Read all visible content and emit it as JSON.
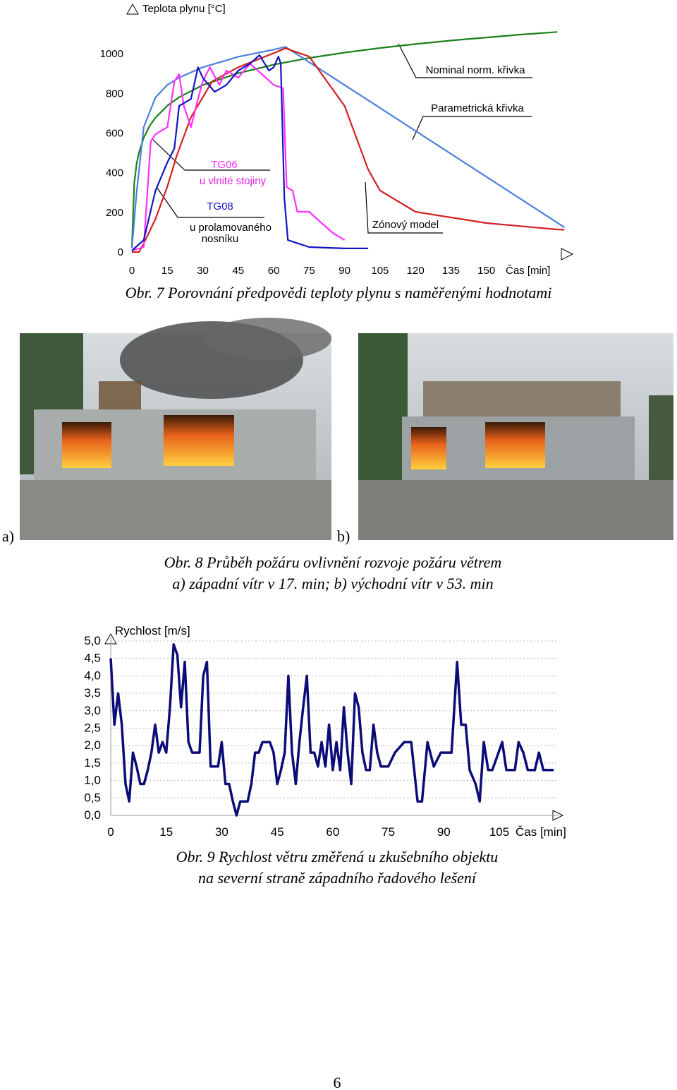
{
  "chart_data": [
    {
      "type": "line",
      "y_label": "Teplota plynu [°C]",
      "x_label": "Čas [min]",
      "xlim": [
        0,
        185
      ],
      "ylim": [
        0,
        1200
      ],
      "xticks": [
        0,
        15,
        30,
        45,
        60,
        75,
        90,
        105,
        120,
        135,
        150
      ],
      "yticks": [
        0,
        200,
        400,
        600,
        800,
        1000
      ],
      "grid": false,
      "series": [
        {
          "name": "Nominal norm. křivka",
          "color": "#1b7f1b",
          "x": [
            0,
            1,
            2,
            3,
            5,
            7.5,
            10,
            15,
            20,
            30,
            45,
            60,
            75,
            90,
            105,
            120,
            135,
            150,
            165,
            180
          ],
          "values": [
            20,
            349,
            444,
            502,
            576,
            636,
            678,
            738,
            781,
            842,
            902,
            945,
            979,
            1006,
            1029,
            1049,
            1067,
            1082,
            1097,
            1110
          ]
        },
        {
          "name": "Parametrická křivka",
          "color": "#4a80dc",
          "x": [
            0,
            2,
            5,
            10,
            15,
            20,
            30,
            45,
            60,
            65,
            183
          ],
          "values": [
            20,
            300,
            630,
            780,
            843,
            880,
            932,
            985,
            1021,
            1035,
            125
          ]
        },
        {
          "name": "Zónový model",
          "color": "#d42020",
          "x": [
            0,
            3,
            5,
            10,
            15,
            19,
            25,
            34,
            45,
            60,
            65,
            75,
            90,
            100,
            105,
            120,
            150,
            180,
            183
          ],
          "values": [
            0,
            0,
            43,
            167,
            330,
            487,
            680,
            861,
            932,
            1003,
            1028,
            986,
            737,
            416,
            310,
            203,
            146,
            114,
            112
          ]
        },
        {
          "name": "TG06",
          "color": "#ff30ff",
          "x": [
            0,
            5,
            8,
            10,
            15,
            18,
            20,
            22,
            25,
            28,
            30,
            33,
            37,
            40,
            45,
            50,
            55,
            60,
            64,
            65.5,
            68,
            70,
            75,
            80,
            85,
            90
          ],
          "values": [
            7,
            25,
            559,
            594,
            630,
            861,
            897,
            737,
            630,
            772,
            861,
            932,
            843,
            915,
            879,
            950,
            897,
            843,
            826,
            327,
            310,
            203,
            203,
            149,
            96,
            60
          ]
        },
        {
          "name": "TG08",
          "color": "#1414c0",
          "x": [
            0,
            5,
            10,
            15,
            18,
            20,
            25,
            28,
            30,
            35,
            40,
            45,
            50,
            54,
            58,
            60,
            62,
            63,
            64.5,
            66,
            75,
            90,
            100
          ],
          "values": [
            7,
            60,
            310,
            452,
            523,
            737,
            772,
            932,
            879,
            808,
            843,
            915,
            950,
            993,
            915,
            932,
            986,
            950,
            274,
            60,
            25,
            18,
            18
          ]
        }
      ],
      "annotations": [
        "u vlnité stojiny",
        "u prolamovaného",
        "nosníku"
      ]
    },
    {
      "type": "line",
      "y_label": "Rychlost [m/s]",
      "x_label": "Čas [min]",
      "xlim": [
        0,
        121
      ],
      "ylim": [
        0,
        5.1
      ],
      "xticks": [
        0,
        15,
        30,
        45,
        60,
        75,
        90,
        105
      ],
      "yticks": [
        {
          "value": 0,
          "label": "0,0"
        },
        {
          "value": 0.5,
          "label": "0,5"
        },
        {
          "value": 1,
          "label": "1,0"
        },
        {
          "value": 1.5,
          "label": "1,5"
        },
        {
          "value": 2,
          "label": "2,0"
        },
        {
          "value": 2.5,
          "label": "2,5"
        },
        {
          "value": 3,
          "label": "3,0"
        },
        {
          "value": 3.5,
          "label": "3,5"
        },
        {
          "value": 4,
          "label": "4,0"
        },
        {
          "value": 4.5,
          "label": "4,5"
        },
        {
          "value": 5,
          "label": "5,0"
        }
      ],
      "grid": true,
      "series": [
        {
          "color": "#0c0c78",
          "x": [
            0,
            1,
            2,
            3,
            4,
            5,
            6,
            7,
            8,
            9,
            10,
            11,
            12,
            13,
            14,
            15,
            16,
            17,
            18,
            19,
            20,
            21,
            22,
            23,
            24,
            25,
            26,
            27,
            28,
            29,
            30,
            31,
            32,
            33,
            34,
            35,
            36,
            37,
            38,
            39,
            40,
            41,
            42,
            43,
            44,
            45,
            46,
            47,
            48,
            49,
            50,
            51,
            52,
            53,
            54,
            55,
            56,
            57,
            58,
            59,
            60,
            61,
            62,
            63,
            64,
            65,
            66,
            67,
            68,
            69,
            70,
            71,
            72,
            73,
            75,
            76.8,
            79.3,
            81.2,
            82.9,
            84.1,
            85.6,
            87.3,
            89.2,
            90.7,
            92.1,
            93.6,
            94.7,
            95.9,
            97,
            98.6,
            99.7,
            100.8,
            102,
            103.1,
            105.8,
            106.9,
            109.2,
            110.2,
            111.5,
            112.7,
            114.6,
            115.7,
            116.9,
            119.7
          ],
          "values": [
            4.5,
            2.6,
            3.5,
            2.6,
            0.9,
            0.4,
            1.8,
            1.4,
            0.9,
            0.9,
            1.3,
            1.8,
            2.6,
            1.8,
            2.1,
            1.8,
            3.1,
            4.9,
            4.6,
            3.1,
            4.4,
            2.1,
            1.8,
            1.8,
            1.8,
            4.0,
            4.4,
            1.4,
            1.4,
            1.4,
            2.1,
            0.9,
            0.9,
            0.4,
            0.0,
            0.4,
            0.4,
            0.4,
            0.9,
            1.8,
            1.8,
            2.1,
            2.1,
            2.1,
            1.8,
            0.9,
            1.3,
            1.8,
            4.0,
            1.8,
            0.9,
            2.1,
            3.1,
            4.0,
            1.8,
            1.8,
            1.4,
            2.1,
            1.4,
            2.6,
            1.3,
            2.1,
            1.3,
            3.1,
            1.8,
            0.9,
            3.5,
            3.1,
            1.8,
            1.3,
            1.3,
            2.6,
            1.8,
            1.4,
            1.4,
            1.8,
            2.1,
            2.1,
            0.4,
            0.4,
            2.1,
            1.4,
            1.8,
            1.8,
            1.8,
            4.4,
            2.6,
            2.6,
            1.3,
            0.9,
            0.4,
            2.1,
            1.3,
            1.3,
            2.1,
            1.3,
            1.3,
            2.1,
            1.8,
            1.3,
            1.3,
            1.8,
            1.3,
            1.3
          ]
        }
      ]
    }
  ],
  "figure_7": {
    "caption": "Obr. 7 Porovnání předpovědi teploty plynu s naměřenými hodnotami"
  },
  "figure_8": {
    "label_a": "a)",
    "label_b": "b)",
    "caption_lines": [
      "Obr. 8 Průběh požáru ovlivnění rozvoje požáru větrem",
      "a) západní vítr v 17. min; b) východní vítr v 53. min"
    ]
  },
  "figure_9": {
    "caption_lines": [
      "Obr. 9 Rychlost větru změřená u zkušebního objektu",
      "na severní straně západního řadového lešení"
    ]
  },
  "page_number": "6"
}
